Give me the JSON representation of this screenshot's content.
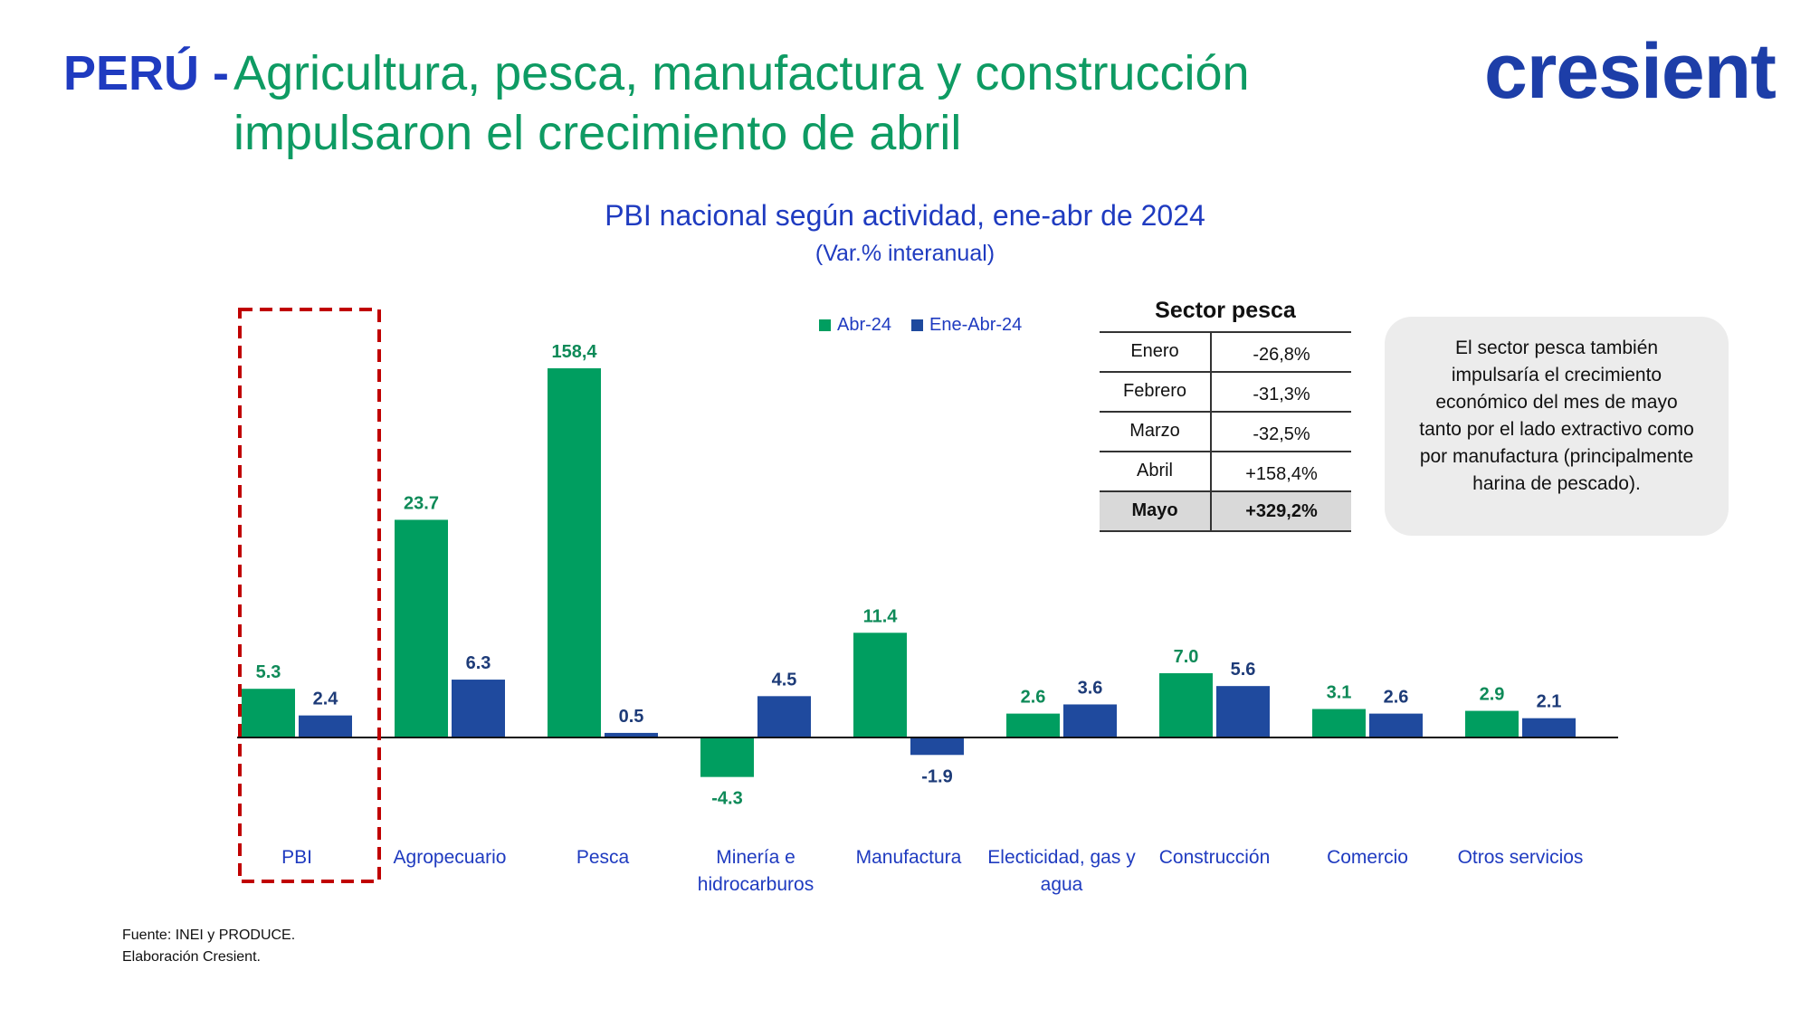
{
  "slide": {
    "title_country": "PERÚ -",
    "title_text": "Agricultura, pesca, manufactura y construcción impulsaron el crecimiento de abril",
    "logo": "cresient",
    "source_line1": "Fuente: INEI y PRODUCE.",
    "source_line2": "Elaboración Cresient.",
    "note": "El sector pesca también impulsaría el crecimiento económico del mes de mayo tanto por el lado extractivo como por manufactura (principalmente harina de pescado)."
  },
  "colors": {
    "green": "#009e60",
    "blue": "#1f4a9e",
    "title_blue": "#1f3bc0",
    "highlight_red": "#c00000"
  },
  "pesca_table": {
    "title": "Sector pesca",
    "rows": [
      {
        "month": "Enero",
        "value": "-26,8%"
      },
      {
        "month": "Febrero",
        "value": "-31,3%"
      },
      {
        "month": "Marzo",
        "value": "-32,5%"
      },
      {
        "month": "Abril",
        "value": "+158,4%"
      },
      {
        "month": "Mayo",
        "value": "+329,2%",
        "highlight": true
      }
    ]
  },
  "chart_data": {
    "type": "bar",
    "title": "PBI nacional según actividad, ene-abr de 2024",
    "subtitle": "(Var.% interanual)",
    "categories": [
      "PBI",
      "Agropecuario",
      "Pesca",
      "Minería e hidrocarburos",
      "Manufactura",
      "Electicidad, gas y agua",
      "Construcción",
      "Comercio",
      "Otros servicios"
    ],
    "category_lines": [
      [
        "PBI"
      ],
      [
        "Agropecuario"
      ],
      [
        "Pesca"
      ],
      [
        "Minería e",
        "hidrocarburos"
      ],
      [
        "Manufactura"
      ],
      [
        "Electicidad, gas y",
        "agua"
      ],
      [
        "Construcción"
      ],
      [
        "Comercio"
      ],
      [
        "Otros servicios"
      ]
    ],
    "series": [
      {
        "name": "Abr-24",
        "values": [
          5.3,
          23.7,
          158.4,
          -4.3,
          11.4,
          2.6,
          7.0,
          3.1,
          2.9
        ],
        "labels": [
          "5.3",
          "23.7",
          "158,4",
          "-4.3",
          "11.4",
          "2.6",
          "7.0",
          "3.1",
          "2.9"
        ]
      },
      {
        "name": "Ene-Abr-24",
        "values": [
          2.4,
          6.3,
          0.5,
          4.5,
          -1.9,
          3.6,
          5.6,
          2.6,
          2.1
        ],
        "labels": [
          "2.4",
          "6.3",
          "0.5",
          "4.5",
          "-1.9",
          "3.6",
          "5.6",
          "2.6",
          "2.1"
        ]
      }
    ],
    "legend_position": "top-center",
    "highlighted_category": "PBI",
    "axis_break": "Pesca Abr-24 bar is truncated (not to scale)"
  }
}
